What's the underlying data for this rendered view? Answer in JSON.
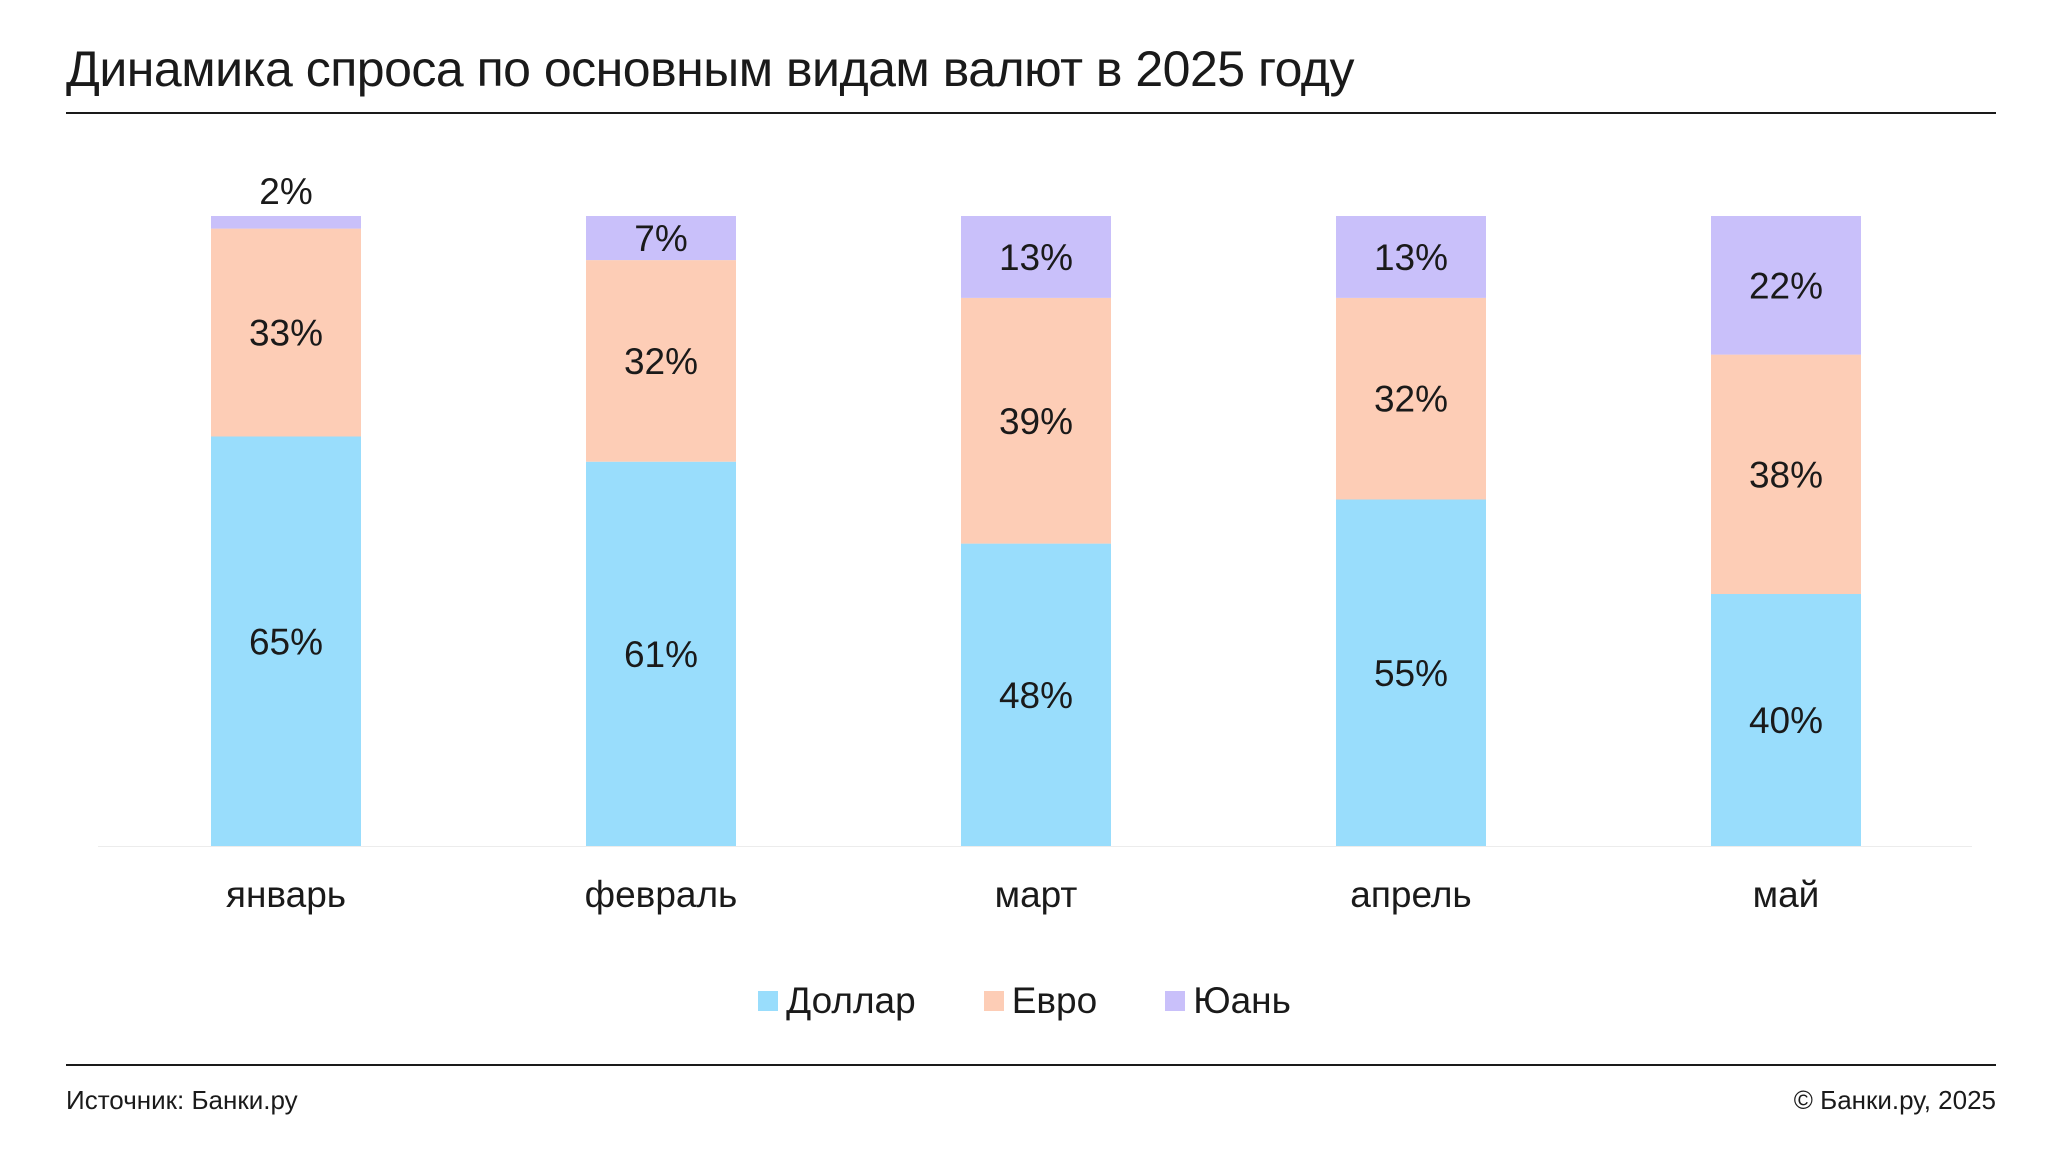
{
  "title": "Динамика спроса по основным видам валют в 2025 году",
  "source": "Источник: Банки.ру",
  "copyright": "© Банки.ру, 2025",
  "legend": [
    {
      "label": "Доллар",
      "color": "#99ddfc"
    },
    {
      "label": "Евро",
      "color": "#fdcdb6"
    },
    {
      "label": "Юань",
      "color": "#c9c0fa"
    }
  ],
  "chart_data": {
    "type": "bar",
    "stacked": true,
    "categories": [
      "январь",
      "февраль",
      "март",
      "апрель",
      "май"
    ],
    "series": [
      {
        "name": "Доллар",
        "values": [
          65,
          61,
          48,
          55,
          40
        ],
        "labels": [
          "65%",
          "61%",
          "48%",
          "55%",
          "40%"
        ],
        "color": "#99ddfc"
      },
      {
        "name": "Евро",
        "values": [
          33,
          32,
          39,
          32,
          38
        ],
        "labels": [
          "33%",
          "32%",
          "39%",
          "32%",
          "38%"
        ],
        "color": "#fdcdb6"
      },
      {
        "name": "Юань",
        "values": [
          2,
          7,
          13,
          13,
          22
        ],
        "labels": [
          "2%",
          "7%",
          "13%",
          "13%",
          "22%"
        ],
        "color": "#c9c0fa"
      }
    ],
    "ylim": [
      0,
      100
    ],
    "grid": false,
    "legend_position": "bottom"
  }
}
